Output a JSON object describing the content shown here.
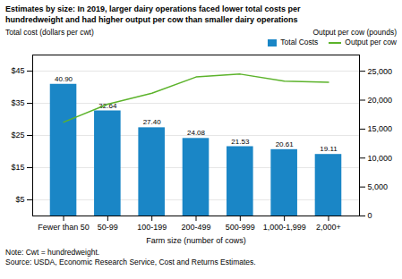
{
  "chart_data": {
    "type": "bar",
    "title": "Estimates by size: In 2019, larger dairy operations faced lower total costs per\nhundredweight and had higher output per cow than smaller dairy operations",
    "xlabel": "Farm size (number of cows)",
    "ylabel": "Total cost (dollars per cwt)",
    "y2label": "Output per cow (pounds)",
    "categories": [
      "Fewer than 50",
      "50-99",
      "100-199",
      "200-499",
      "500-999",
      "1,000-1,999",
      "2,000+"
    ],
    "series": [
      {
        "name": "Total Costs",
        "type": "bar",
        "color": "#1a86c6",
        "values": [
          40.9,
          32.64,
          27.4,
          24.08,
          21.53,
          20.61,
          19.11
        ],
        "value_labels": [
          "40.90",
          "32.64",
          "27.40",
          "24.08",
          "21.53",
          "20.61",
          "19.11"
        ]
      },
      {
        "name": "Output per cow",
        "type": "line",
        "color": "#5cb32b",
        "axis": "y2",
        "values": [
          16200,
          19300,
          21200,
          24000,
          24500,
          23300,
          23100
        ]
      }
    ],
    "ylim": [
      0,
      50
    ],
    "yticks": [
      {
        "value": 5,
        "label": "$5"
      },
      {
        "value": 15,
        "label": "$15"
      },
      {
        "value": 25,
        "label": "$25"
      },
      {
        "value": 35,
        "label": "$35"
      },
      {
        "value": 45,
        "label": "$45"
      }
    ],
    "y2lim": [
      0,
      27800
    ],
    "y2ticks": [
      0,
      {
        "value": 5000,
        "label": "5,000"
      },
      {
        "value": 10000,
        "label": "10,000"
      },
      {
        "value": 15000,
        "label": "15,000"
      },
      {
        "value": 20000,
        "label": "20,000"
      },
      {
        "value": 25000,
        "label": "25,000"
      }
    ],
    "grid": true,
    "legend": "upper right",
    "data_labels": true,
    "note": "Note: Cwt = hundredweight.",
    "source": "Source: USDA, Economic Research Service, Cost and Returns Estimates."
  }
}
